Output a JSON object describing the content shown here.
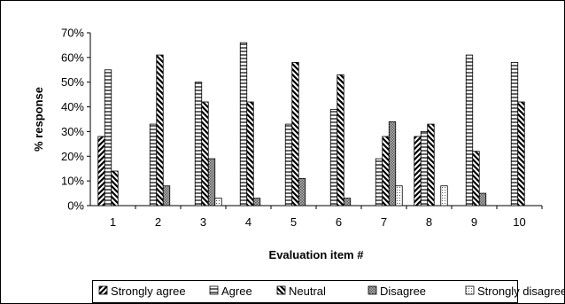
{
  "chart_data": {
    "type": "bar",
    "xlabel": "Evaluation item #",
    "ylabel": "% response",
    "ylim": [
      0,
      70
    ],
    "yticks": [
      "0%",
      "10%",
      "20%",
      "30%",
      "40%",
      "50%",
      "60%",
      "70%"
    ],
    "categories": [
      "1",
      "2",
      "3",
      "4",
      "5",
      "6",
      "7",
      "8",
      "9",
      "10"
    ],
    "legend_position": "bottom",
    "grid": false,
    "series": [
      {
        "name": "Strongly agree",
        "pattern": "diag-up",
        "values": [
          28,
          0,
          0,
          0,
          0,
          0,
          0,
          28,
          0,
          0
        ]
      },
      {
        "name": "Agree",
        "pattern": "horizontal",
        "values": [
          55,
          33,
          50,
          66,
          33,
          39,
          19,
          30,
          61,
          58
        ]
      },
      {
        "name": "Neutral",
        "pattern": "diag-down",
        "values": [
          14,
          61,
          42,
          42,
          58,
          53,
          28,
          33,
          22,
          42
        ]
      },
      {
        "name": "Disagree",
        "pattern": "checker",
        "values": [
          0,
          8,
          19,
          3,
          11,
          3,
          34,
          0,
          5,
          0
        ]
      },
      {
        "name": "Strongly disagree",
        "pattern": "dotted",
        "values": [
          0,
          0,
          3,
          0,
          0,
          0,
          8,
          8,
          0,
          0
        ]
      }
    ]
  }
}
